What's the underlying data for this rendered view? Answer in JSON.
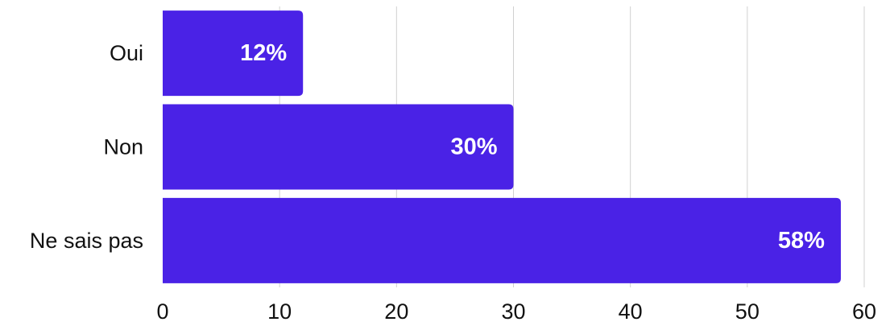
{
  "chart_data": {
    "type": "bar",
    "orientation": "horizontal",
    "categories": [
      "Oui",
      "Non",
      "Ne sais pas"
    ],
    "values": [
      12,
      30,
      58
    ],
    "value_labels": [
      "12%",
      "30%",
      "58%"
    ],
    "xlim": [
      0,
      60
    ],
    "xticks": [
      0,
      10,
      20,
      30,
      40,
      50,
      60
    ],
    "xtick_labels": [
      "0",
      "10",
      "20",
      "30",
      "40",
      "50",
      "60"
    ],
    "grid": "vertical",
    "legend": "none",
    "title": "",
    "xlabel": "",
    "ylabel": "",
    "colors": {
      "bar": "#4A22E6",
      "value_label": "#ffffff",
      "grid": "#d0d0d0"
    }
  }
}
